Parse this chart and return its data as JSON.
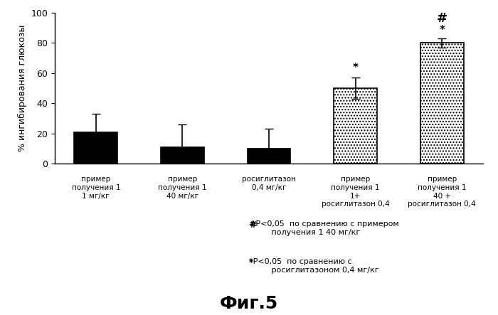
{
  "categories": [
    "пример\nполучения 1\n1 мг/кг",
    "пример\nполучения 1\n40 мг/кг",
    "росиглитазон\n0,4 мг/кг",
    "пример\nполучения 1\n1+\nросиглитазон 0,4",
    "пример\nполучения 1\n40 +\nросиглитазон 0,4"
  ],
  "values": [
    21,
    11,
    10,
    50,
    80
  ],
  "errors": [
    12,
    15,
    13,
    7,
    3
  ],
  "bar_colors_solid": [
    "black",
    "black",
    "black"
  ],
  "bar_colors_hatched": [
    "white",
    "white"
  ],
  "bar_hatches": [
    "....",
    "...."
  ],
  "ylabel": "% ингибирования глюкозы",
  "ylim": [
    0,
    100
  ],
  "yticks": [
    0,
    20,
    40,
    60,
    80,
    100
  ],
  "title": "Фиг.5",
  "background_color": "#ffffff",
  "bar_width": 0.5,
  "figsize": [
    7.0,
    4.43
  ],
  "dpi": 100
}
